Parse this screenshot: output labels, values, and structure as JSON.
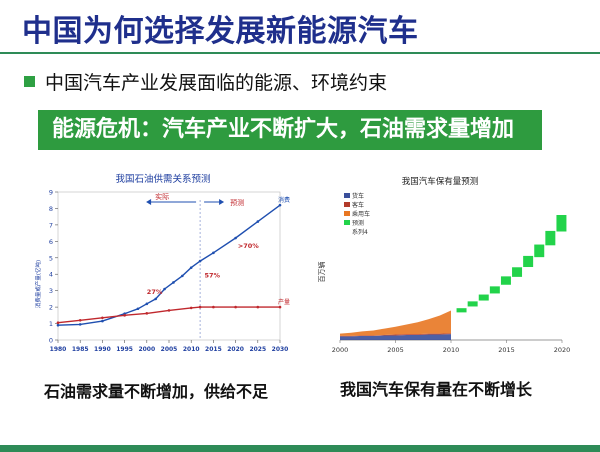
{
  "slide": {
    "title": "中国为何选择发展新能源汽车",
    "bullet": "中国汽车产业发展面临的能源、环境约束",
    "banner": "能源危机：汽车产业不断扩大，石油需求量增加",
    "left_caption": "石油需求量不断增加，供给不足",
    "right_caption": "我国汽车保有量在不断增长"
  },
  "colors": {
    "title": "#1f2f8c",
    "accent_green": "#2e9b3f",
    "demand_line": "#1f4fb0",
    "supply_line": "#c0282d"
  },
  "chart_data": [
    {
      "type": "line",
      "title": "我国石油供需关系预测",
      "ylabel": "消费量或产量(亿吨)",
      "x_ticks": [
        "1980",
        "1985",
        "1990",
        "1995",
        "2000",
        "2005",
        "2010",
        "2015",
        "2020",
        "2025",
        "2030"
      ],
      "y_ticks": [
        "0",
        "1",
        "2",
        "3",
        "4",
        "5",
        "6",
        "7",
        "8",
        "9"
      ],
      "xlim": [
        1980,
        2030
      ],
      "ylim": [
        0,
        9
      ],
      "annotations": {
        "actual": "实际",
        "forecast": "预测",
        "gap_27": "27%",
        "gap_57": "57%",
        "gap_70": ">70%"
      },
      "series": [
        {
          "name": "消费量",
          "x": [
            1980,
            1985,
            1990,
            1995,
            1998,
            2000,
            2002,
            2004,
            2006,
            2008,
            2010,
            2012,
            2015,
            2020,
            2025,
            2030
          ],
          "y": [
            0.9,
            0.95,
            1.15,
            1.6,
            1.9,
            2.2,
            2.5,
            3.1,
            3.5,
            3.9,
            4.4,
            4.8,
            5.3,
            6.2,
            7.2,
            8.2
          ]
        },
        {
          "name": "产量",
          "x": [
            1980,
            1985,
            1990,
            1995,
            2000,
            2005,
            2010,
            2012,
            2015,
            2020,
            2025,
            2030
          ],
          "y": [
            1.05,
            1.2,
            1.35,
            1.5,
            1.62,
            1.8,
            1.95,
            2.0,
            2.0,
            2.0,
            2.0,
            2.0
          ]
        }
      ]
    },
    {
      "type": "bar",
      "title": "我国汽车保有量预测",
      "ylabel": "百万辆",
      "x_ticks": [
        "2000",
        "2005",
        "2010",
        "2015",
        "2020"
      ],
      "legend": [
        "货车",
        "客车",
        "乘用车",
        "预测",
        "系列4"
      ],
      "history": {
        "years": [
          2000,
          2001,
          2002,
          2003,
          2004,
          2005,
          2006,
          2007,
          2008,
          2009,
          2010
        ],
        "series": [
          {
            "name": "乘用车",
            "values": [
              5,
              7,
              9,
              11,
              14,
              17,
              21,
              26,
              32,
              40,
              50
            ]
          },
          {
            "name": "客车",
            "values": [
              1,
              1,
              1,
              1,
              1,
              2,
              2,
              2,
              2,
              2,
              2
            ]
          },
          {
            "name": "货车",
            "values": [
              8,
              8,
              9,
              9,
              10,
              10,
              11,
              11,
              12,
              12,
              13
            ]
          }
        ]
      },
      "forecast": {
        "name": "预测",
        "years": [
          2011,
          2012,
          2013,
          2014,
          2015,
          2016,
          2017,
          2018,
          2019,
          2020
        ],
        "values": [
          70,
          85,
          100,
          118,
          140,
          160,
          185,
          210,
          240,
          275
        ]
      },
      "ylim": [
        0,
        330
      ]
    }
  ]
}
